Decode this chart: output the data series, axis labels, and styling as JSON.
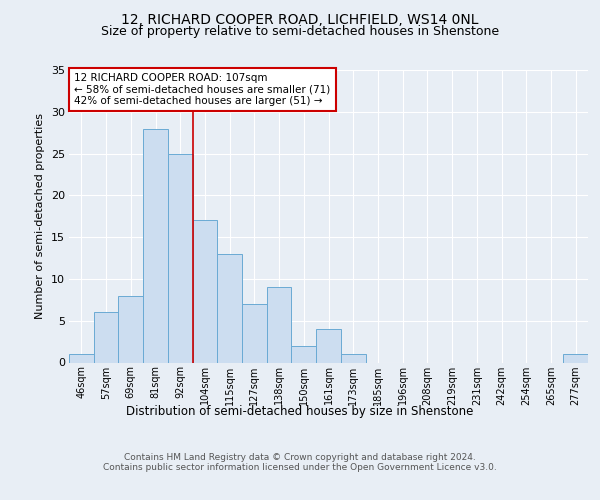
{
  "title_line1": "12, RICHARD COOPER ROAD, LICHFIELD, WS14 0NL",
  "title_line2": "Size of property relative to semi-detached houses in Shenstone",
  "xlabel": "Distribution of semi-detached houses by size in Shenstone",
  "ylabel": "Number of semi-detached properties",
  "footer": "Contains HM Land Registry data © Crown copyright and database right 2024.\nContains public sector information licensed under the Open Government Licence v3.0.",
  "bin_labels": [
    "46sqm",
    "57sqm",
    "69sqm",
    "81sqm",
    "92sqm",
    "104sqm",
    "115sqm",
    "127sqm",
    "138sqm",
    "150sqm",
    "161sqm",
    "173sqm",
    "185sqm",
    "196sqm",
    "208sqm",
    "219sqm",
    "231sqm",
    "242sqm",
    "254sqm",
    "265sqm",
    "277sqm"
  ],
  "bar_values": [
    1,
    6,
    8,
    28,
    25,
    17,
    13,
    7,
    9,
    2,
    4,
    1,
    0,
    0,
    0,
    0,
    0,
    0,
    0,
    0,
    1
  ],
  "bar_color": "#ccddf0",
  "bar_edge_color": "#6aaad4",
  "vline_x_index": 5,
  "vline_color": "#cc0000",
  "annotation_title": "12 RICHARD COOPER ROAD: 107sqm",
  "annotation_line1": "← 58% of semi-detached houses are smaller (71)",
  "annotation_line2": "42% of semi-detached houses are larger (51) →",
  "annotation_box_color": "#ffffff",
  "annotation_box_edge": "#cc0000",
  "ylim": [
    0,
    35
  ],
  "yticks": [
    0,
    5,
    10,
    15,
    20,
    25,
    30,
    35
  ],
  "background_color": "#e8eef5",
  "plot_background": "#e8eef5",
  "grid_color": "#ffffff",
  "title_fontsize": 10,
  "subtitle_fontsize": 9
}
